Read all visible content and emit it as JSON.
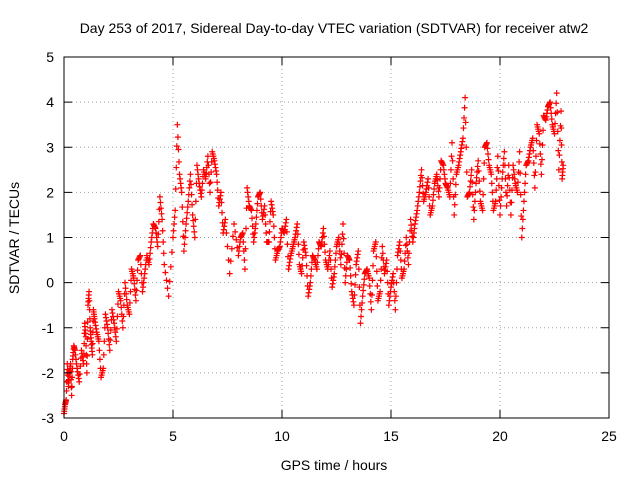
{
  "chart_data": {
    "type": "scatter",
    "title": "Day 253 of 2017, Sidereal Day-to-day VTEC variation (SDTVAR) for receiver atw2",
    "xlabel": "GPS time / hours",
    "ylabel": "SDTVAR / TECUs",
    "xlim": [
      0,
      25
    ],
    "ylim": [
      -3,
      5
    ],
    "xticks": [
      "0",
      "5",
      "10",
      "15",
      "20",
      "25"
    ],
    "yticks": [
      "-3",
      "-2",
      "-1",
      "0",
      "1",
      "2",
      "3",
      "4",
      "5"
    ],
    "grid": true,
    "marker": "+",
    "series_color": "#ff0000",
    "series": [
      {
        "name": "atw2",
        "x": [
          0.0,
          0.1,
          0.2,
          0.3,
          0.4,
          0.5,
          0.7,
          0.9,
          1.0,
          1.1,
          1.2,
          1.3,
          1.4,
          1.6,
          1.8,
          2.0,
          2.2,
          2.4,
          2.6,
          2.8,
          3.0,
          3.2,
          3.4,
          3.6,
          3.8,
          4.0,
          4.2,
          4.4,
          4.6,
          4.8,
          5.0,
          5.1,
          5.2,
          5.4,
          5.6,
          5.8,
          6.0,
          6.2,
          6.4,
          6.6,
          6.8,
          7.0,
          7.2,
          7.4,
          7.6,
          7.8,
          8.0,
          8.2,
          8.4,
          8.6,
          8.8,
          9.0,
          9.2,
          9.4,
          9.6,
          9.8,
          10.0,
          10.2,
          10.4,
          10.6,
          10.8,
          11.0,
          11.2,
          11.4,
          11.6,
          11.8,
          12.0,
          12.2,
          12.4,
          12.6,
          12.8,
          13.0,
          13.2,
          13.4,
          13.6,
          13.8,
          14.0,
          14.2,
          14.4,
          14.6,
          14.8,
          15.0,
          15.2,
          15.4,
          15.6,
          15.8,
          16.0,
          16.2,
          16.4,
          16.6,
          16.8,
          17.0,
          17.2,
          17.4,
          17.6,
          17.8,
          18.0,
          18.2,
          18.4,
          18.6,
          18.8,
          19.0,
          19.2,
          19.4,
          19.6,
          19.8,
          20.0,
          20.2,
          20.4,
          20.6,
          20.8,
          21.0,
          21.2,
          21.4,
          21.6,
          21.8,
          22.0,
          22.2,
          22.4,
          22.6,
          22.8,
          22.9
        ],
        "y": [
          -2.9,
          -2.6,
          -2.3,
          -1.8,
          -1.7,
          -1.5,
          -2.2,
          -1.8,
          -1.2,
          -0.5,
          -1.0,
          -1.6,
          -0.8,
          -1.3,
          -1.9,
          -1.0,
          -0.6,
          -1.3,
          -0.4,
          0.0,
          -0.7,
          0.1,
          0.5,
          -0.2,
          0.6,
          0.9,
          1.2,
          1.9,
          0.4,
          -0.3,
          1.0,
          1.6,
          3.5,
          2.0,
          1.3,
          2.4,
          1.0,
          2.2,
          2.5,
          2.8,
          2.9,
          2.4,
          2.0,
          1.4,
          0.2,
          1.3,
          0.6,
          1.1,
          2.1,
          1.6,
          1.3,
          2.0,
          1.7,
          0.9,
          1.5,
          0.7,
          1.2,
          1.4,
          0.6,
          1.0,
          0.4,
          0.9,
          -0.3,
          0.6,
          0.3,
          0.8,
          0.5,
          0.7,
          0.2,
          1.0,
          1.3,
          0.6,
          -0.2,
          0.4,
          -0.9,
          0.2,
          0.1,
          0.7,
          -0.4,
          0.8,
          0.5,
          -0.1,
          -0.6,
          0.9,
          0.3,
          0.4,
          0.9,
          1.6,
          2.5,
          2.0,
          1.5,
          2.2,
          1.9,
          2.6,
          2.1,
          3.1,
          2.4,
          2.9,
          4.1,
          2.0,
          1.4,
          2.7,
          1.6,
          3.1,
          2.4,
          1.8,
          1.5,
          2.9,
          2.6,
          2.6,
          2.0,
          1.0,
          2.6,
          3.0,
          2.1,
          3.3,
          3.7,
          3.9,
          3.5,
          4.2,
          3.8,
          2.6
        ],
        "scatter_x": [
          0.05,
          0.15,
          0.25,
          0.35,
          0.45,
          0.6,
          0.8,
          0.95,
          1.05,
          1.15,
          1.25,
          1.35,
          1.5,
          1.7,
          1.9,
          2.1,
          2.3,
          2.5,
          2.7,
          2.9,
          3.1,
          3.3,
          3.5,
          3.7,
          3.9,
          4.1,
          4.3,
          4.5,
          5.3,
          5.5,
          5.7,
          5.9,
          6.1,
          6.3,
          6.5,
          6.7,
          6.9,
          7.1,
          7.3,
          8.1,
          8.3,
          8.5,
          8.7,
          8.9,
          9.1,
          9.3,
          9.5,
          9.7,
          9.9,
          10.1,
          10.3,
          10.5,
          10.7,
          10.9,
          11.1,
          11.3,
          11.5,
          11.7,
          11.9,
          12.1,
          12.3,
          12.5,
          12.7,
          12.9,
          13.1,
          13.3,
          13.5,
          13.7,
          13.9,
          14.1,
          14.3,
          14.5,
          14.7,
          14.9,
          15.1,
          15.3,
          15.5,
          15.7,
          15.9,
          16.1,
          16.3,
          16.5,
          16.7,
          16.9,
          17.1,
          17.3,
          17.5,
          17.7,
          17.9,
          18.1,
          18.3,
          18.5,
          18.7,
          18.9,
          19.1,
          19.3,
          19.5,
          19.7,
          19.9,
          20.1,
          20.3,
          20.5,
          20.7,
          20.9,
          21.1,
          21.3,
          21.5,
          21.7,
          21.9,
          22.1,
          22.3,
          22.5,
          22.7,
          22.85
        ],
        "scatter_y": [
          -2.7,
          -1.8,
          -2.0,
          -2.5,
          -1.4,
          -1.9,
          -1.5,
          -0.9,
          -2.0,
          -0.2,
          -1.3,
          -0.6,
          -1.1,
          -2.1,
          -0.7,
          -1.5,
          -0.9,
          -0.2,
          -1.0,
          -0.5,
          0.3,
          -0.4,
          0.6,
          0.2,
          0.4,
          1.3,
          0.8,
          1.4,
          2.4,
          0.7,
          1.8,
          1.5,
          2.6,
          1.9,
          2.3,
          2.0,
          2.7,
          1.7,
          1.1,
          1.0,
          0.3,
          1.7,
          0.9,
          1.9,
          1.4,
          0.9,
          1.8,
          0.5,
          0.8,
          1.1,
          0.3,
          0.8,
          1.3,
          0.2,
          0.6,
          0.0,
          0.5,
          0.9,
          1.2,
          0.3,
          -0.1,
          0.8,
          0.4,
          0.0,
          0.5,
          -0.5,
          0.7,
          -0.3,
          0.3,
          -0.6,
          0.9,
          -0.2,
          0.2,
          -0.5,
          0.2,
          0.6,
          0.1,
          1.0,
          1.4,
          1.3,
          2.0,
          1.8,
          2.3,
          1.7,
          2.4,
          2.7,
          2.2,
          1.9,
          1.5,
          2.6,
          3.2,
          1.9,
          2.5,
          2.2,
          1.8,
          3.0,
          2.6,
          1.6,
          2.8,
          2.3,
          1.7,
          1.5,
          2.2,
          2.9,
          1.8,
          2.7,
          3.2,
          3.5,
          2.4,
          3.6,
          4.0,
          3.3,
          2.5,
          2.3
        ]
      }
    ]
  }
}
